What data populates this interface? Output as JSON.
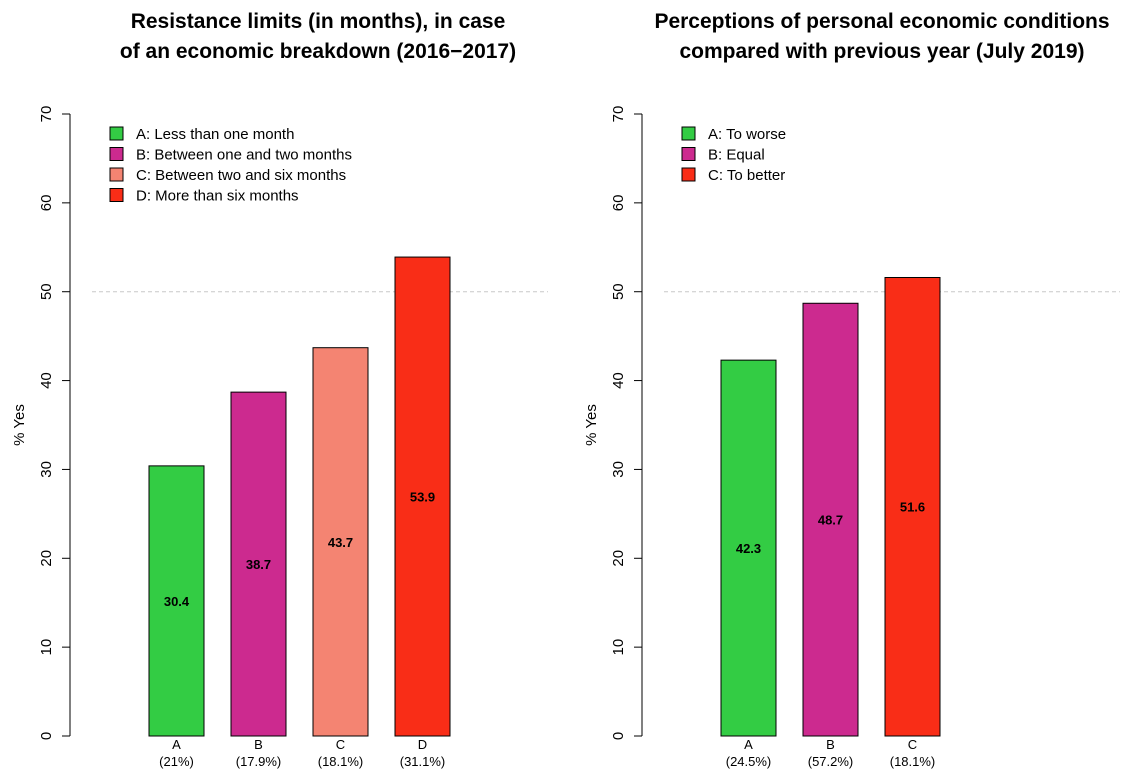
{
  "chart_data": [
    {
      "type": "bar",
      "title": "Resistance limits (in months), in case\nof an economic breakdown (2016−2017)",
      "xlabel": "",
      "ylabel": "% Yes",
      "ylim": [
        0,
        70
      ],
      "yticks": [
        0,
        10,
        20,
        30,
        40,
        50,
        60,
        70
      ],
      "reference_line": 50,
      "legend_position": "top-left",
      "grid": false,
      "categories": [
        "A",
        "B",
        "C",
        "D"
      ],
      "category_sublabels": [
        "(21%)",
        "(17.9%)",
        "(18.1%)",
        "(31.1%)"
      ],
      "values": [
        30.4,
        38.7,
        43.7,
        53.9
      ],
      "value_labels": [
        "30.4",
        "38.7",
        "43.7",
        "53.9"
      ],
      "colors": [
        "#33cc44",
        "#cc2a8f",
        "#f48472",
        "#f92d17"
      ],
      "legend": [
        "A: Less than one month",
        "B: Between one and two months",
        "C: Between two and six months",
        "D: More than six months"
      ]
    },
    {
      "type": "bar",
      "title": "Perceptions of personal economic conditions\ncompared with previous year (July 2019)",
      "xlabel": "",
      "ylabel": "% Yes",
      "ylim": [
        0,
        70
      ],
      "yticks": [
        0,
        10,
        20,
        30,
        40,
        50,
        60,
        70
      ],
      "reference_line": 50,
      "legend_position": "top-left",
      "grid": false,
      "categories": [
        "A",
        "B",
        "C"
      ],
      "category_sublabels": [
        "(24.5%)",
        "(57.2%)",
        "(18.1%)"
      ],
      "values": [
        42.3,
        48.7,
        51.6
      ],
      "value_labels": [
        "42.3",
        "48.7",
        "51.6"
      ],
      "colors": [
        "#33cc44",
        "#cc2a8f",
        "#f92d17"
      ],
      "legend": [
        "A: To worse",
        "B: Equal",
        "C: To better"
      ]
    }
  ]
}
